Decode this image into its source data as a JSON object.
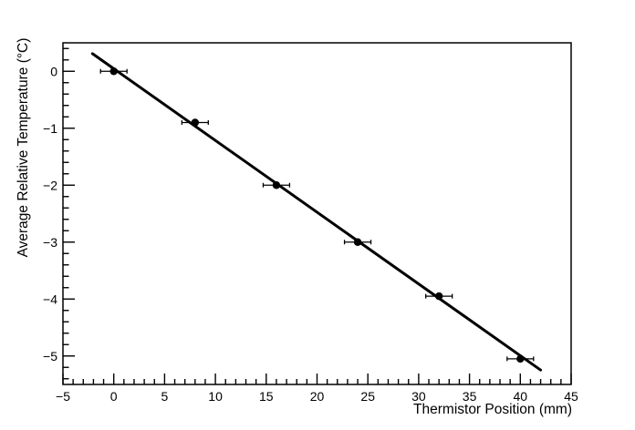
{
  "chart_data": {
    "type": "scatter",
    "title": "",
    "xlabel": "Thermistor Position (mm)",
    "ylabel": "Average Relative Temperature (°C)",
    "xlim": [
      -5,
      45
    ],
    "ylim": [
      -5.5,
      0.5
    ],
    "x_major_ticks": [
      -5,
      0,
      5,
      10,
      15,
      20,
      25,
      30,
      35,
      40,
      45
    ],
    "x_minor_tick_step": 1,
    "y_major_ticks": [
      0,
      -1,
      -2,
      -3,
      -4,
      -5
    ],
    "y_minor_tick_step": 0.2,
    "grid": false,
    "legend": false,
    "background": "#ffffff",
    "axis_color": "#000000",
    "series": [
      {
        "name": "average-relative-temperature-vs-thermistor-position",
        "marker": "filled-circle",
        "color": "#000000",
        "x": [
          0,
          8,
          16,
          24,
          32,
          40
        ],
        "y": [
          0.0,
          -0.9,
          -2.0,
          -3.0,
          -3.95,
          -5.05
        ],
        "x_error": [
          1.3,
          1.3,
          1.3,
          1.3,
          1.3,
          1.3
        ]
      }
    ],
    "fit": {
      "type": "linear",
      "slope": -0.126,
      "intercept": 0.045,
      "x_range": [
        -2.1,
        42
      ],
      "color": "#000000"
    }
  }
}
